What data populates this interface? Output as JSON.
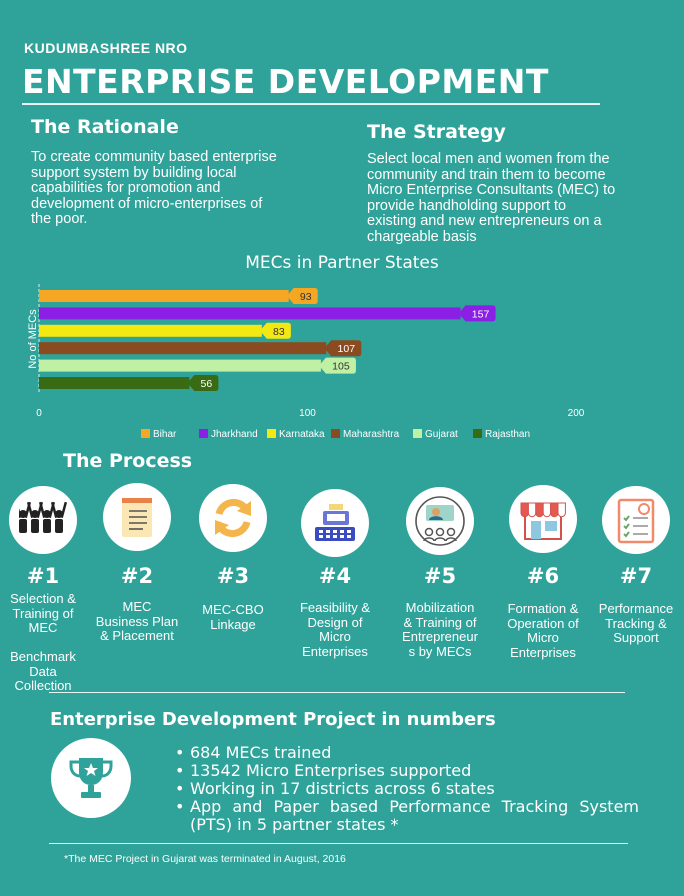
{
  "header": {
    "org": "KUDUMBASHREE NRO",
    "title": "ENTERPRISE DEVELOPMENT"
  },
  "rationale": {
    "heading": "The Rationale",
    "lines": [
      "To create community based enterprise",
      "support system by building local",
      "capabilities for promotion and",
      "development of micro-enterprises of",
      "the poor."
    ]
  },
  "strategy": {
    "heading": "The Strategy",
    "lines": [
      "Select local men and women from the",
      "community and train them to become",
      "Micro Enterprise Consultants (MEC) to",
      "provide handholding support to",
      "existing and new entrepreneurs on a",
      "chargeable basis"
    ]
  },
  "chart_data": {
    "type": "bar",
    "orientation": "horizontal",
    "title": "MECs in Partner States",
    "ylabel": "No of MECs",
    "xlabel": "",
    "xlim": [
      0,
      200
    ],
    "xticks": [
      "0",
      "100",
      "200"
    ],
    "grid": false,
    "legend_position": "bottom",
    "series": [
      {
        "name": "Bihar",
        "value": 93,
        "color": "#f5a623"
      },
      {
        "name": "Jharkhand",
        "value": 157,
        "color": "#8b1fe6"
      },
      {
        "name": "Karnataka",
        "value": 83,
        "color": "#f3e812"
      },
      {
        "name": "Maharashtra",
        "value": 107,
        "color": "#8a4b20"
      },
      {
        "name": "Gujarat",
        "value": 105,
        "color": "#bff0a4"
      },
      {
        "name": "Rajasthan",
        "value": 56,
        "color": "#386b13"
      }
    ]
  },
  "process": {
    "heading": "The Process",
    "steps": [
      {
        "num": "#1",
        "icon": "people-raising-hands-icon",
        "lines": [
          "Selection &",
          "Training of",
          "MEC",
          "",
          "Benchmark",
          "Data",
          "Collection"
        ]
      },
      {
        "num": "#2",
        "icon": "notepad-icon",
        "lines": [
          "MEC",
          "Business Plan",
          "& Placement"
        ]
      },
      {
        "num": "#3",
        "icon": "refresh-arrows-icon",
        "lines": [
          "MEC-CBO",
          "Linkage"
        ]
      },
      {
        "num": "#4",
        "icon": "cash-register-icon",
        "lines": [
          "Feasibility &",
          "Design of",
          "Micro",
          "Enterprises"
        ]
      },
      {
        "num": "#5",
        "icon": "presenter-icon",
        "lines": [
          "Mobilization",
          "& Training of",
          "Entrepreneur",
          "s by MECs"
        ]
      },
      {
        "num": "#6",
        "icon": "shop-icon",
        "lines": [
          "Formation &",
          "Operation of",
          "Micro",
          "Enterprises"
        ]
      },
      {
        "num": "#7",
        "icon": "checklist-report-icon",
        "lines": [
          "Performance",
          "Tracking &",
          "Support"
        ]
      }
    ]
  },
  "numbers": {
    "heading": "Enterprise Development Project in numbers",
    "icon": "trophy-icon",
    "bullets": [
      "684 MECs trained",
      "13542 Micro Enterprises supported",
      "Working in 17 districts across 6 states",
      "App and Paper based Performance Tracking System (PTS) in 5 partner states *"
    ],
    "footnote": "*The MEC Project in Gujarat was terminated in August, 2016"
  }
}
